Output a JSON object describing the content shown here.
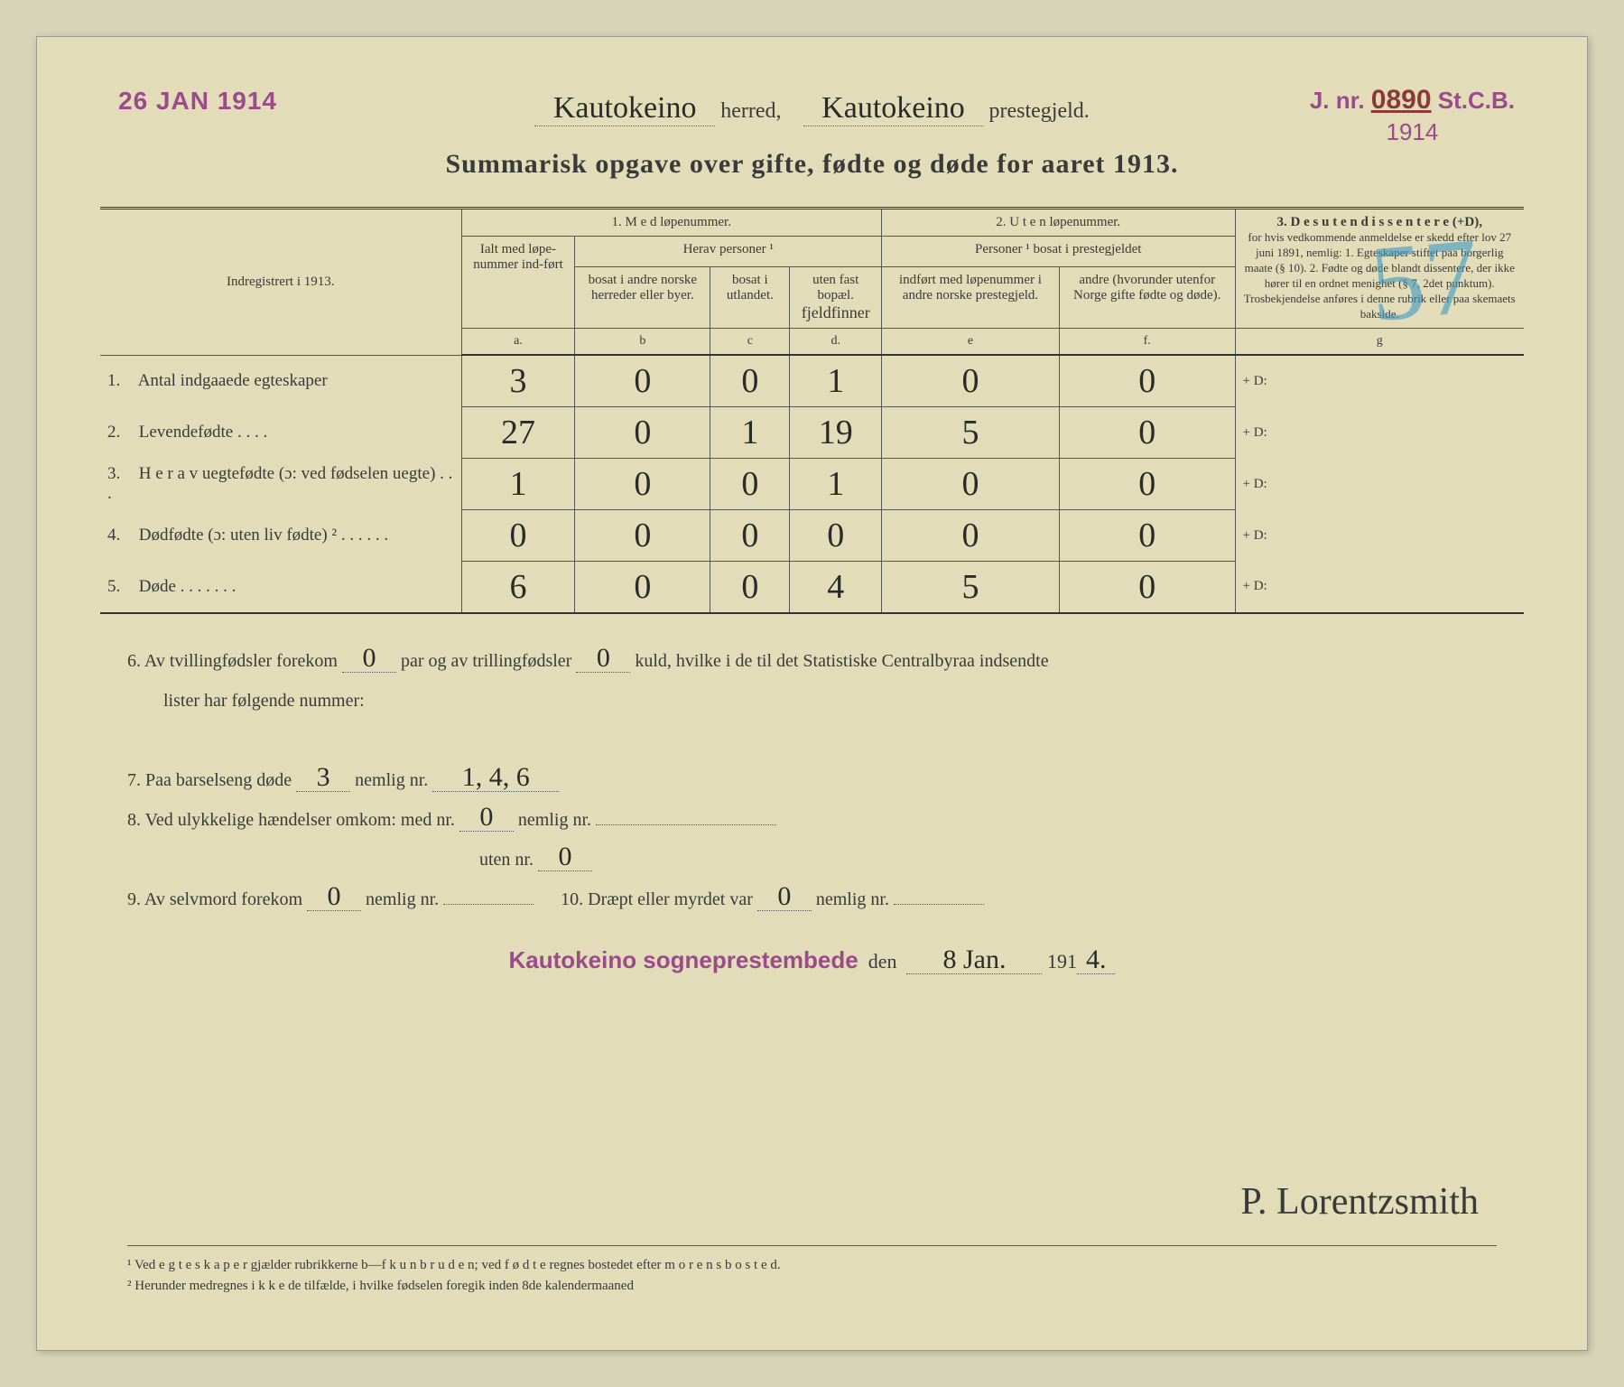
{
  "stamp_date": "26 JAN 1914",
  "stamp_jnr": {
    "prefix": "J. nr.",
    "number": "0890",
    "suffix": "St.C.B.",
    "year": "1914"
  },
  "header": {
    "herred": "Kautokeino",
    "herred_label": "herred,",
    "prestegjeld": "Kautokeino",
    "prestegjeld_label": "prestegjeld."
  },
  "title": "Summarisk opgave over gifte, fødte og døde for aaret 1913.",
  "blue_mark": "57",
  "table": {
    "indreg_label": "Indregistrert i 1913.",
    "section1": "1.  M e d  løpenummer.",
    "section2": "2. U t e n løpenummer.",
    "section3_title": "3.  D e s u t e n  d i s s e n t e r e (+D),",
    "section3_body": "for hvis vedkommende anmeldelse er skedd efter lov 27 juni 1891, nemlig: 1. Egteskaper stiftet paa borgerlig maate (§ 10). 2. Fødte og døde blandt dissentere, der ikke hører til en ordnet menighet (§ 7, 2det punktum). Trosbekjendelse anføres i denne rubrik eller paa skemaets bakside.",
    "ialt_label": "Ialt med løpe-nummer ind-ført",
    "herav_label": "Herav personer ¹",
    "personer_label": "Personer ¹ bosat i prestegjeldet",
    "col_b": "bosat i andre norske herreder eller byer.",
    "col_c": "bosat i utlandet.",
    "col_d": "uten fast bopæl.",
    "col_d_hw": "fjeldfinner",
    "col_e": "indført med løpenummer i andre norske prestegjeld.",
    "col_f": "andre (hvorunder utenfor Norge gifte fødte og døde).",
    "letters": [
      "a.",
      "b",
      "c",
      "d.",
      "e",
      "f.",
      "g"
    ],
    "rows": [
      {
        "num": "1.",
        "label": "Antal indgaaede egteskaper",
        "a": "3",
        "b": "0",
        "c": "0",
        "d": "1",
        "e": "0",
        "f": "0",
        "g": "+ D:"
      },
      {
        "num": "2.",
        "label": "Levendefødte  .  .  .  .",
        "a": "27",
        "b": "0",
        "c": "1",
        "d": "19",
        "e": "5",
        "f": "0",
        "g": "+ D:"
      },
      {
        "num": "3.",
        "label": "H e r a v  uegtefødte (ɔ: ved fødselen uegte)  .  .  .",
        "a": "1",
        "b": "0",
        "c": "0",
        "d": "1",
        "e": "0",
        "f": "0",
        "g": "+ D:"
      },
      {
        "num": "4.",
        "label": "Dødfødte (ɔ: uten liv fødte) ²  .  .  .  .  .  .",
        "a": "0",
        "b": "0",
        "c": "0",
        "d": "0",
        "e": "0",
        "f": "0",
        "g": "+ D:"
      },
      {
        "num": "5.",
        "label": "Døde  .  .  .  .  .  .  .",
        "a": "6",
        "b": "0",
        "c": "0",
        "d": "4",
        "e": "5",
        "f": "0",
        "g": "+ D:"
      }
    ]
  },
  "notes": {
    "n6_pre": "6.   Av tvillingfødsler forekom",
    "n6_v1": "0",
    "n6_mid": "par og av trillingfødsler",
    "n6_v2": "0",
    "n6_post": "kuld, hvilke i de til det Statistiske Centralbyraa indsendte",
    "n6_line2": "lister har følgende nummer:",
    "n7_pre": "7.   Paa barselseng døde",
    "n7_v1": "3",
    "n7_mid": "nemlig nr.",
    "n7_v2": "1, 4, 6",
    "n8_pre": "8.   Ved ulykkelige hændelser omkom: med  nr.",
    "n8_v1": "0",
    "n8_mid": "nemlig nr.",
    "n8_line2_pre": "uten nr.",
    "n8_line2_v": "0",
    "n9_pre": "9.   Av selvmord forekom",
    "n9_v1": "0",
    "n9_mid": "nemlig nr.",
    "n10_pre": "10.   Dræpt eller myrdet var",
    "n10_v1": "0",
    "n10_mid": "nemlig nr."
  },
  "sig": {
    "stamp": "Kautokeino sogneprestembede",
    "den": "den",
    "date": "8 Jan.",
    "year_pre": "191",
    "year_hw": "4.",
    "signature": "P. Lorentzsmith"
  },
  "footnotes": {
    "f1": "¹ Ved e g t e s k a p e r gjælder rubrikkerne b—f k u n  b r u d e n; ved f ø d t e regnes bostedet efter m o r e n s  b o s t e d.",
    "f2": "² Herunder medregnes i k k e de tilfælde, i hvilke fødselen foregik inden 8de kalendermaaned"
  },
  "colors": {
    "paper": "#e2dcb8",
    "ink": "#3a3a3a",
    "stamp": "#9b4a8a",
    "blue": "#3a9bc4",
    "handwriting": "#2a2a2a"
  }
}
